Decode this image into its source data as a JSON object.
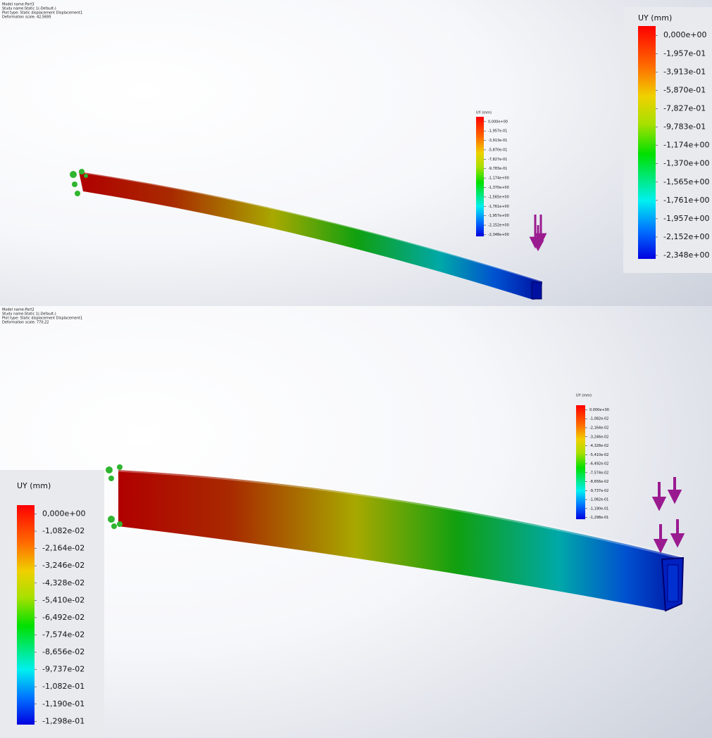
{
  "panels": [
    {
      "header": {
        "model_name": "Model name:Part3",
        "study_name": "Study name:Static 1(-Default-)",
        "plot_type": "Plot type: Static displacement Displacement1",
        "deformation_scale": "Deformation scale: 42,5695"
      },
      "legend": {
        "title": "UY (mm)",
        "labels": [
          "0,000e+00",
          "-1,957e-01",
          "-3,913e-01",
          "-5,870e-01",
          "-7,827e-01",
          "-9,783e-01",
          "-1,174e+00",
          "-1,370e+00",
          "-1,565e+00",
          "-1,761e+00",
          "-1,957e+00",
          "-2,152e+00",
          "-2,348e+00"
        ]
      }
    },
    {
      "header": {
        "model_name": "Model name:Part2",
        "study_name": "Study name:Static 1(-Default-)",
        "plot_type": "Plot type: Static displacement Displacement1",
        "deformation_scale": "Deformation scale: 770,22"
      },
      "legend": {
        "title": "UY (mm)",
        "labels": [
          "0,000e+00",
          "-1,082e-02",
          "-2,164e-02",
          "-3,246e-02",
          "-4,328e-02",
          "-5,410e-02",
          "-6,492e-02",
          "-7,574e-02",
          "-8,656e-02",
          "-9,737e-02",
          "-1,082e-01",
          "-1,190e-01",
          "-1,298e-01"
        ]
      }
    }
  ]
}
